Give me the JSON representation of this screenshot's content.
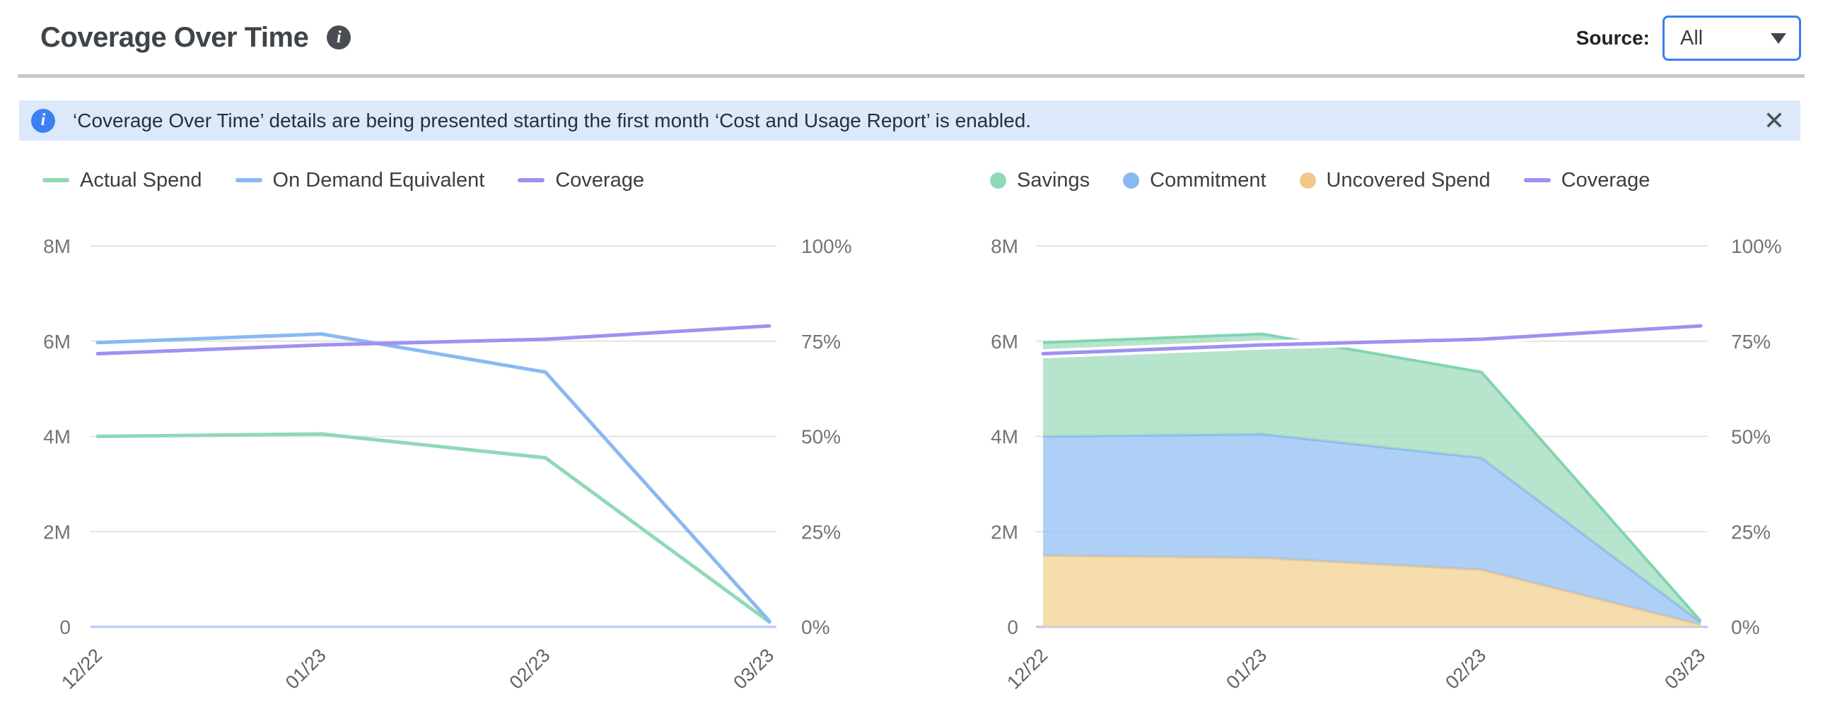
{
  "header": {
    "title": "Coverage Over Time",
    "source_label": "Source:",
    "source_value": "All"
  },
  "banner": {
    "text": "‘Coverage Over Time’ details are being presented starting the first month ‘Cost and Usage Report’ is enabled.",
    "close_glyph": "✕"
  },
  "icons": {
    "info_glyph": "i"
  },
  "colors": {
    "accent_blue": "#3b7cf5",
    "banner_bg": "#dce9fb",
    "banner_icon_blue": "#3c80f3",
    "grid_line": "#e3e3e3",
    "zero_line": "#b9c6f0",
    "axis_text": "#70757a",
    "x_axis_text": "#5d6267",
    "green_line": "#8fd9b6",
    "blue_line": "#8ab9f1",
    "purple_line": "#a090f0",
    "orange_line": "#eec88e",
    "green_fill": "#a5ddc0",
    "blue_fill": "#9ac4f5",
    "orange_fill": "#f2d49a"
  },
  "chart_data": [
    {
      "type": "line",
      "name": "spend-and-coverage-lines",
      "categories": [
        "12/22",
        "01/23",
        "02/23",
        "03/23"
      ],
      "left_ticks": [
        "0",
        "2M",
        "4M",
        "6M",
        "8M"
      ],
      "left_max": 8,
      "left_unit": "M (millions, spend)",
      "right_ticks": [
        "0%",
        "25%",
        "50%",
        "75%",
        "100%"
      ],
      "right_max": 100,
      "grid": true,
      "legend_position": "top-left",
      "legend": [
        {
          "label": "Actual Spend",
          "marker": "line",
          "color": "#8fd9b6"
        },
        {
          "label": "On Demand Equivalent",
          "marker": "line",
          "color": "#8ab9f1"
        },
        {
          "label": "Coverage",
          "marker": "line",
          "color": "#a090f0"
        }
      ],
      "series": [
        {
          "name": "Actual Spend",
          "type": "line",
          "axis": "left",
          "color": "#8fd9b6",
          "values": [
            4.0,
            4.05,
            3.55,
            0.1
          ]
        },
        {
          "name": "On Demand Equivalent",
          "type": "line",
          "axis": "left",
          "color": "#8ab9f1",
          "values": [
            5.97,
            6.15,
            5.35,
            0.12
          ]
        },
        {
          "name": "Coverage",
          "type": "line",
          "axis": "right",
          "color": "#a090f0",
          "values": [
            71.7,
            74.0,
            75.5,
            79.0
          ]
        }
      ]
    },
    {
      "type": "area",
      "name": "savings-commitment-uncovered-stack",
      "categories": [
        "12/22",
        "01/23",
        "02/23",
        "03/23"
      ],
      "left_ticks": [
        "0",
        "2M",
        "4M",
        "6M",
        "8M"
      ],
      "left_max": 8,
      "left_unit": "M (millions, spend)",
      "right_ticks": [
        "0%",
        "25%",
        "50%",
        "75%",
        "100%"
      ],
      "right_max": 100,
      "grid": true,
      "legend_position": "top-left",
      "legend": [
        {
          "label": "Savings",
          "marker": "dot",
          "color": "#8fd9b6"
        },
        {
          "label": "Commitment",
          "marker": "dot",
          "color": "#8ab9f1"
        },
        {
          "label": "Uncovered Spend",
          "marker": "dot",
          "color": "#f0c98a"
        },
        {
          "label": "Coverage",
          "marker": "line",
          "color": "#a090f0"
        }
      ],
      "series": [
        {
          "name": "Uncovered Spend",
          "type": "area",
          "stack": true,
          "axis": "left",
          "color": "#eec88e",
          "fill": "#f2d49a",
          "values": [
            1.5,
            1.45,
            1.2,
            0.05
          ]
        },
        {
          "name": "Commitment",
          "type": "area",
          "stack": true,
          "axis": "left",
          "color": "#8ab9f1",
          "fill": "#9ac4f5",
          "values": [
            2.5,
            2.6,
            2.35,
            0.05
          ]
        },
        {
          "name": "Savings",
          "type": "area",
          "stack": true,
          "axis": "left",
          "color": "#82d4ae",
          "fill": "#a5ddc0",
          "values": [
            1.97,
            2.1,
            1.8,
            0.02
          ]
        },
        {
          "name": "Coverage",
          "type": "line",
          "axis": "right",
          "color": "#a090f0",
          "values": [
            71.7,
            74.0,
            75.5,
            79.0
          ]
        }
      ]
    }
  ]
}
